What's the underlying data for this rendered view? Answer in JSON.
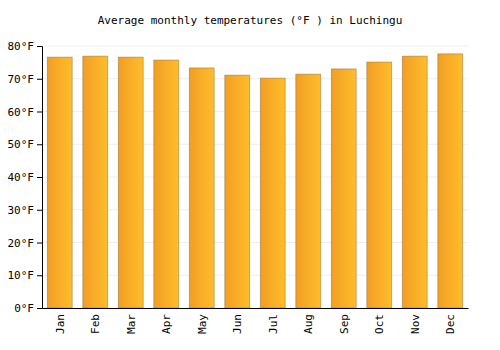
{
  "chart_data": {
    "type": "bar",
    "title": "Average monthly temperatures (°F ) in Luchingu",
    "categories": [
      "Jan",
      "Feb",
      "Mar",
      "Apr",
      "May",
      "Jun",
      "Jul",
      "Aug",
      "Sep",
      "Oct",
      "Nov",
      "Dec"
    ],
    "values": [
      76.6,
      76.9,
      76.6,
      75.7,
      73.3,
      71.1,
      70.2,
      71.4,
      73.0,
      75.1,
      76.9,
      77.6
    ],
    "color": "#ffa726",
    "ylim": [
      0,
      80
    ],
    "yticks": [
      {
        "value": 0,
        "label": "0°F"
      },
      {
        "value": 10,
        "label": "10°F"
      },
      {
        "value": 20,
        "label": "20°F"
      },
      {
        "value": 30,
        "label": "30°F"
      },
      {
        "value": 40,
        "label": "40°F"
      },
      {
        "value": 50,
        "label": "50°F"
      },
      {
        "value": 60,
        "label": "60°F"
      },
      {
        "value": 70,
        "label": "70°F"
      },
      {
        "value": 80,
        "label": "80°F"
      }
    ],
    "grid": true
  }
}
